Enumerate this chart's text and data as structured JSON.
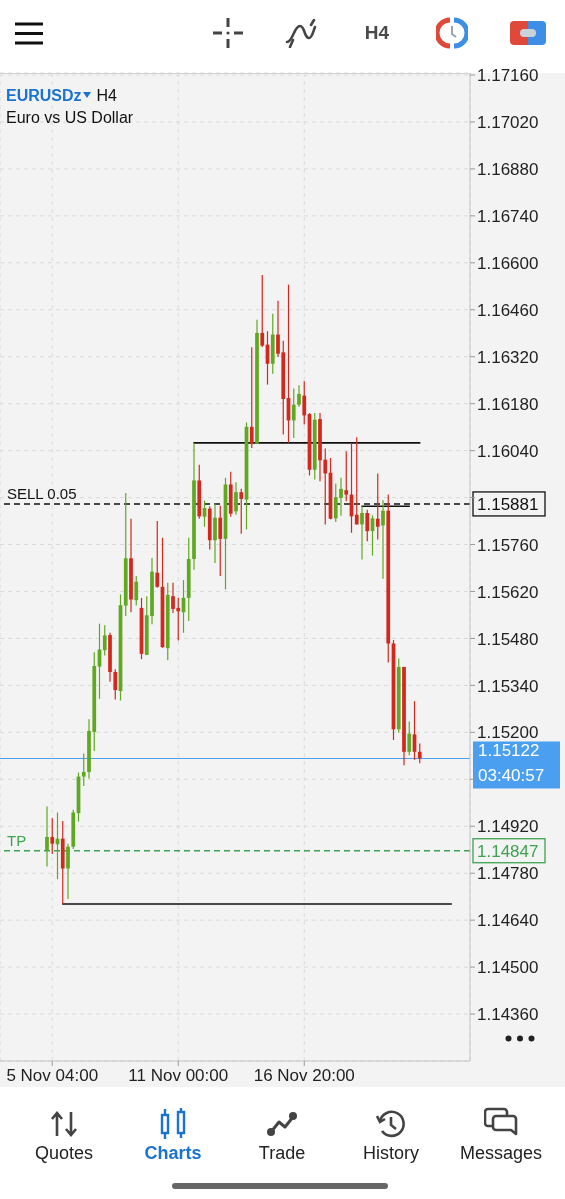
{
  "chart_data": {
    "type": "candlestick",
    "title": "EURUSDz",
    "subtitle": "Euro vs US Dollar",
    "annotations": [
      "H4",
      "H4",
      "Quotes",
      "Charts",
      "Trade",
      "History",
      "Messages",
      "03:40:57",
      {
        "text": "SELL 0.05",
        "y": 1.15881
      },
      {
        "text": "TP",
        "y": 1.14847
      }
    ],
    "categories": [
      null,
      "5 Nov 04:00",
      null,
      null,
      null,
      null,
      null,
      null,
      null,
      null,
      null,
      null,
      null,
      null,
      null,
      null,
      null,
      null,
      null,
      null,
      null,
      null,
      null,
      null,
      null,
      "11 Nov 00:00",
      null,
      null,
      null,
      null,
      null,
      null,
      null,
      null,
      null,
      null,
      null,
      null,
      null,
      null,
      null,
      null,
      null,
      null,
      null,
      null,
      null,
      null,
      null,
      "16 Nov 20:00",
      null,
      null,
      null,
      null,
      null,
      null,
      null,
      null,
      null,
      null,
      null,
      null,
      null,
      null,
      null,
      null,
      null,
      null,
      null,
      null,
      null,
      null,
      null,
      null,
      null,
      null,
      null,
      null,
      null,
      null,
      null
    ],
    "ohlc": [
      [
        1.14849,
        1.14979,
        1.148,
        1.14888
      ],
      [
        1.14888,
        1.14944,
        1.14837,
        1.14868
      ],
      [
        1.14866,
        1.14961,
        1.14762,
        1.14883
      ],
      [
        1.14883,
        1.14936,
        1.14688,
        1.14794
      ],
      [
        1.14794,
        1.14868,
        1.14703,
        1.14859
      ],
      [
        1.14859,
        1.14969,
        1.14852,
        1.14961
      ],
      [
        1.14959,
        1.1508,
        1.14934,
        1.15068
      ],
      [
        1.15068,
        1.15137,
        1.1504,
        1.15082
      ],
      [
        1.15082,
        1.15239,
        1.15062,
        1.15204
      ],
      [
        1.15201,
        1.15439,
        1.15144,
        1.15398
      ],
      [
        1.15396,
        1.15524,
        1.153,
        1.15447
      ],
      [
        1.15445,
        1.15519,
        1.15429,
        1.15489
      ],
      [
        1.1549,
        1.15497,
        1.15351,
        1.1538
      ],
      [
        1.1538,
        1.15388,
        1.15298,
        1.15326
      ],
      [
        1.15323,
        1.15611,
        1.15295,
        1.15579
      ],
      [
        1.15578,
        1.15914,
        1.15547,
        1.15719
      ],
      [
        1.15719,
        1.15837,
        1.15558,
        1.15596
      ],
      [
        1.15594,
        1.15666,
        1.15578,
        1.15649
      ],
      [
        1.15571,
        1.15601,
        1.15418,
        1.15434
      ],
      [
        1.15431,
        1.15606,
        1.15431,
        1.15549
      ],
      [
        1.15547,
        1.1572,
        1.15522,
        1.15679
      ],
      [
        1.15676,
        1.1583,
        1.15631,
        1.15634
      ],
      [
        1.15634,
        1.1578,
        1.15452,
        1.15454
      ],
      [
        1.15451,
        1.15646,
        1.15415,
        1.1561
      ],
      [
        1.15606,
        1.15646,
        1.15556,
        1.15568
      ],
      [
        1.15571,
        1.15601,
        1.15474,
        1.15561
      ],
      [
        1.15558,
        1.15654,
        1.15497,
        1.15601
      ],
      [
        1.15601,
        1.1578,
        1.15532,
        1.15717
      ],
      [
        1.15717,
        1.16063,
        1.15685,
        1.15951
      ],
      [
        1.15951,
        1.15998,
        1.15837,
        1.15844
      ],
      [
        1.15843,
        1.15891,
        1.15813,
        1.15869
      ],
      [
        1.15867,
        1.15874,
        1.15745,
        1.15773
      ],
      [
        1.15773,
        1.15882,
        1.15705,
        1.1584
      ],
      [
        1.1584,
        1.15876,
        1.15666,
        1.15777
      ],
      [
        1.15777,
        1.15959,
        1.15626,
        1.15939
      ],
      [
        1.15939,
        1.15977,
        1.15843,
        1.15852
      ],
      [
        1.15859,
        1.15946,
        1.15849,
        1.15916
      ],
      [
        1.15916,
        1.15926,
        1.15792,
        1.15896
      ],
      [
        1.15894,
        1.16124,
        1.15805,
        1.16111
      ],
      [
        1.16111,
        1.16348,
        1.16048,
        1.16061
      ],
      [
        1.16061,
        1.1643,
        1.16061,
        1.16391
      ],
      [
        1.16391,
        1.16564,
        1.16349,
        1.16353
      ],
      [
        1.16356,
        1.16396,
        1.16237,
        1.16299
      ],
      [
        1.16299,
        1.16448,
        1.16269,
        1.16386
      ],
      [
        1.16386,
        1.16487,
        1.16319,
        1.16329
      ],
      [
        1.16333,
        1.16368,
        1.16088,
        1.16194
      ],
      [
        1.16197,
        1.16535,
        1.16063,
        1.1613
      ],
      [
        1.1613,
        1.16225,
        1.16078,
        1.16177
      ],
      [
        1.16177,
        1.16235,
        1.1617,
        1.16209
      ],
      [
        1.16204,
        1.16247,
        1.16118,
        1.16145
      ],
      [
        1.16149,
        1.16152,
        1.15966,
        1.15983
      ],
      [
        1.15983,
        1.16152,
        1.15954,
        1.16132
      ],
      [
        1.16134,
        1.16152,
        1.15949,
        1.16011
      ],
      [
        1.16013,
        1.16046,
        1.1582,
        1.15972
      ],
      [
        1.15974,
        1.16018,
        1.15835,
        1.15837
      ],
      [
        1.15838,
        1.15942,
        1.15827,
        1.15901
      ],
      [
        1.15899,
        1.15959,
        1.15846,
        1.15926
      ],
      [
        1.15922,
        1.16038,
        1.15889,
        1.15909
      ],
      [
        1.15909,
        1.16063,
        1.15795,
        1.15844
      ],
      [
        1.15849,
        1.1608,
        1.1582,
        1.1582
      ],
      [
        1.1582,
        1.15874,
        1.15715,
        1.15854
      ],
      [
        1.15854,
        1.15864,
        1.1577,
        1.158
      ],
      [
        1.158,
        1.15847,
        1.15727,
        1.15838
      ],
      [
        1.15837,
        1.15972,
        1.15775,
        1.15813
      ],
      [
        1.15817,
        1.15892,
        1.15658,
        1.15861
      ],
      [
        1.15861,
        1.15909,
        1.15408,
        1.15465
      ],
      [
        1.15465,
        1.15475,
        1.15177,
        1.15209
      ],
      [
        1.15209,
        1.1542,
        1.15199,
        1.15395
      ],
      [
        1.15395,
        1.15395,
        1.15102,
        1.15142
      ],
      [
        1.15142,
        1.15232,
        1.15132,
        1.15196
      ],
      [
        1.15194,
        1.15293,
        1.15118,
        1.15142
      ],
      [
        1.15142,
        1.15167,
        1.15108,
        1.15122
      ],
      null,
      null,
      null,
      null,
      null,
      null,
      null,
      null,
      null
    ],
    "colors": [
      "#5fa822",
      "#d2281e",
      "#5fa822",
      "#d2281e",
      "#5fa822",
      "#5fa822",
      "#5fa822",
      "#5fa822",
      "#5fa822",
      "#5fa822",
      "#5fa822",
      "#5fa822",
      "#d2281e",
      "#d2281e",
      "#5fa822",
      "#5fa822",
      "#d2281e",
      "#5fa822",
      "#d2281e",
      "#5fa822",
      "#5fa822",
      "#d2281e",
      "#d2281e",
      "#5fa822",
      "#d2281e",
      "#d2281e",
      "#5fa822",
      "#5fa822",
      "#5fa822",
      "#d2281e",
      "#5fa822",
      "#d2281e",
      "#5fa822",
      "#d2281e",
      "#5fa822",
      "#d2281e",
      "#5fa822",
      "#d2281e",
      "#5fa822",
      "#d2281e",
      "#5fa822",
      "#d2281e",
      "#d2281e",
      "#5fa822",
      "#d2281e",
      "#d2281e",
      "#d2281e",
      "#5fa822",
      "#5fa822",
      "#d2281e",
      "#d2281e",
      "#5fa822",
      "#d2281e",
      "#d2281e",
      "#d2281e",
      "#5fa822",
      "#5fa822",
      "#d2281e",
      "#d2281e",
      "#d2281e",
      "#5fa822",
      "#d2281e",
      "#5fa822",
      "#d2281e",
      "#5fa822",
      "#d2281e",
      "#d2281e",
      "#5fa822",
      "#d2281e",
      "#5fa822",
      "#d2281e",
      "#d2281e",
      null,
      null,
      null,
      null,
      null,
      null,
      null,
      null,
      null
    ],
    "series": [
      {
        "type": "line",
        "color": "#111111",
        "values": [
          null,
          null,
          null,
          null,
          null,
          null,
          null,
          null,
          null,
          null,
          null,
          null,
          null,
          null,
          null,
          null,
          null,
          null,
          null,
          null,
          null,
          null,
          null,
          null,
          null,
          null,
          null,
          null,
          1.16063,
          1.16063,
          1.16063,
          1.16063,
          1.16063,
          1.16063,
          1.16063,
          1.16063,
          1.16063,
          1.16063,
          1.16063,
          1.16063,
          1.16063,
          1.16063,
          1.16063,
          1.16063,
          1.16063,
          1.16063,
          1.16063,
          1.16063,
          1.16063,
          1.16063,
          1.16063,
          1.16063,
          1.16063,
          1.16063,
          1.16063,
          1.16063,
          1.16063,
          1.16063,
          1.16063,
          1.16063,
          1.16063,
          1.16063,
          1.16063,
          1.16063,
          1.16063,
          1.16063,
          1.16063,
          1.16063,
          1.16063,
          1.16063,
          1.16063,
          1.16063,
          null,
          null,
          null,
          null,
          null,
          null,
          null,
          null,
          null
        ]
      },
      {
        "type": "line",
        "color": "#111111",
        "values": [
          null,
          null,
          null,
          null,
          null,
          null,
          null,
          null,
          null,
          null,
          null,
          null,
          null,
          null,
          null,
          null,
          null,
          null,
          null,
          null,
          null,
          null,
          null,
          null,
          null,
          null,
          null,
          null,
          null,
          null,
          null,
          null,
          null,
          null,
          null,
          null,
          null,
          null,
          null,
          null,
          null,
          null,
          null,
          null,
          null,
          null,
          null,
          null,
          null,
          null,
          null,
          null,
          null,
          null,
          null,
          null,
          null,
          null,
          null,
          null,
          1.15874,
          1.15874,
          1.15874,
          1.15874,
          1.15874,
          1.15874,
          1.15874,
          1.15874,
          1.15874,
          1.15874,
          null,
          null,
          null,
          null,
          null,
          null,
          null,
          null,
          null,
          null,
          null
        ]
      },
      {
        "type": "line",
        "color": "#111111",
        "values": [
          null,
          null,
          null,
          1.14688,
          1.14688,
          1.14688,
          1.14688,
          1.14688,
          1.14688,
          1.14688,
          1.14688,
          1.14688,
          1.14688,
          1.14688,
          1.14688,
          1.14688,
          1.14688,
          1.14688,
          1.14688,
          1.14688,
          1.14688,
          1.14688,
          1.14688,
          1.14688,
          1.14688,
          1.14688,
          1.14688,
          1.14688,
          1.14688,
          1.14688,
          1.14688,
          1.14688,
          1.14688,
          1.14688,
          1.14688,
          1.14688,
          1.14688,
          1.14688,
          1.14688,
          1.14688,
          1.14688,
          1.14688,
          1.14688,
          1.14688,
          1.14688,
          1.14688,
          1.14688,
          1.14688,
          1.14688,
          1.14688,
          1.14688,
          1.14688,
          1.14688,
          1.14688,
          1.14688,
          1.14688,
          1.14688,
          1.14688,
          1.14688,
          1.14688,
          1.14688,
          1.14688,
          1.14688,
          1.14688,
          1.14688,
          1.14688,
          1.14688,
          1.14688,
          1.14688,
          1.14688,
          1.14688,
          1.14688,
          1.14688,
          1.14688,
          1.14688,
          1.14688,
          1.14688,
          1.14688,
          null,
          null,
          null
        ]
      }
    ],
    "ref_lines": [
      {
        "axis": "y",
        "value": 1.15881,
        "label": "1.15881",
        "color": "#111111",
        "line_style": "dashed"
      },
      {
        "axis": "y",
        "value": 1.15122,
        "label": "1.15122",
        "color": "#4a9ff0",
        "line_style": "solid"
      },
      {
        "axis": "y",
        "value": 1.14847,
        "label": "1.14847",
        "color": "#3ea351",
        "line_style": "dashed"
      }
    ],
    "ylim": [
      1.1422,
      1.17166
    ],
    "yticks": [
      {
        "value": 1.1436,
        "label": "1.14360"
      },
      {
        "value": 1.145,
        "label": "1.14500"
      },
      {
        "value": 1.1464,
        "label": "1.14640"
      },
      {
        "value": 1.1478,
        "label": "1.14780"
      },
      {
        "value": 1.1492,
        "label": "1.14920"
      },
      {
        "value": 1.1506,
        "label": null
      },
      {
        "value": 1.152,
        "label": "1.15200"
      },
      {
        "value": 1.1534,
        "label": "1.15340"
      },
      {
        "value": 1.1548,
        "label": "1.15480"
      },
      {
        "value": 1.1562,
        "label": "1.15620"
      },
      {
        "value": 1.1576,
        "label": "1.15760"
      },
      {
        "value": 1.159,
        "label": null
      },
      {
        "value": 1.1604,
        "label": "1.16040"
      },
      {
        "value": 1.1618,
        "label": "1.16180"
      },
      {
        "value": 1.1632,
        "label": "1.16320"
      },
      {
        "value": 1.1646,
        "label": "1.16460"
      },
      {
        "value": 1.166,
        "label": "1.16600"
      },
      {
        "value": 1.1674,
        "label": "1.16740"
      },
      {
        "value": 1.1688,
        "label": "1.16880"
      },
      {
        "value": 1.1702,
        "label": "1.17020"
      },
      {
        "value": 1.1716,
        "label": "1.17160"
      }
    ],
    "grid": true
  }
}
